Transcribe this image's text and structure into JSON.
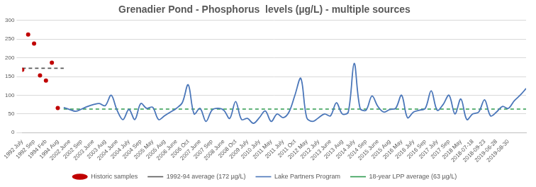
{
  "chart_data": {
    "type": "line",
    "title": "Grenadier Pond - Phosphorus  levels (µg/L) - multiple sources",
    "categories": [
      "1992 July",
      null,
      "1992 Sep",
      null,
      "1994 Feb",
      null,
      "1994 Aug",
      null,
      "2002 June",
      null,
      "2002 Sep",
      null,
      "2003 June",
      null,
      "2003 Aug",
      null,
      "2004 June",
      null,
      "2004 July",
      null,
      "2004 Sep",
      null,
      "2005 May",
      null,
      "2005 Aug",
      null,
      "2006 June",
      null,
      "2006 Oct",
      null,
      "2007 June",
      null,
      "2007 Sep",
      null,
      "2008 June",
      null,
      "2008 Oct",
      null,
      "2009 July",
      null,
      "2010 July",
      null,
      "2011 May",
      null,
      "2011 July",
      null,
      "2011 Oct",
      null,
      "2012 May",
      null,
      "2012 July",
      null,
      "2013 June",
      null,
      "2013 Aug",
      null,
      "2014 July",
      null,
      "2014 Sep",
      null,
      "2015 June",
      null,
      "2015 Aug",
      null,
      "2016 May",
      null,
      "2016 July",
      null,
      "2016 Sep",
      null,
      "2017 July",
      null,
      "2017 Sep",
      null,
      "2018 May",
      null,
      "2018-07-18",
      null,
      "2018-09-23",
      null,
      "2019-06-28",
      null,
      "2019-08-30",
      null,
      null,
      null
    ],
    "series": [
      {
        "name": "Historic samples",
        "type": "scatter",
        "marker": "circle",
        "color": "#c00000",
        "values": [
          168,
          262,
          238,
          153,
          139,
          187,
          66,
          null,
          null,
          null,
          null,
          null,
          null,
          null,
          null,
          null,
          null,
          null,
          null,
          null,
          null,
          null,
          null,
          null,
          null,
          null,
          null,
          null,
          null,
          null,
          null,
          null,
          null,
          null,
          null,
          null,
          null,
          null,
          null,
          null,
          null,
          null,
          null,
          null,
          null,
          null,
          null,
          null,
          null,
          null,
          null,
          null,
          null,
          null,
          null,
          null,
          null,
          null,
          null,
          null,
          null,
          null,
          null,
          null,
          null,
          null,
          null,
          null,
          null,
          null,
          null,
          null,
          null,
          null,
          null,
          null,
          null,
          null,
          null,
          null,
          null,
          null,
          null,
          null,
          null,
          null
        ]
      },
      {
        "name": "1992-94 average (172 µg/L)",
        "type": "line",
        "line_style": "dashed",
        "color": "#595959",
        "values": [
          172,
          172,
          172,
          172,
          172,
          172,
          172,
          172,
          null,
          null,
          null,
          null,
          null,
          null,
          null,
          null,
          null,
          null,
          null,
          null,
          null,
          null,
          null,
          null,
          null,
          null,
          null,
          null,
          null,
          null,
          null,
          null,
          null,
          null,
          null,
          null,
          null,
          null,
          null,
          null,
          null,
          null,
          null,
          null,
          null,
          null,
          null,
          null,
          null,
          null,
          null,
          null,
          null,
          null,
          null,
          null,
          null,
          null,
          null,
          null,
          null,
          null,
          null,
          null,
          null,
          null,
          null,
          null,
          null,
          null,
          null,
          null,
          null,
          null,
          null,
          null,
          null,
          null,
          null,
          null,
          null,
          null,
          null,
          null,
          null,
          null
        ]
      },
      {
        "name": "Lake Partners Program",
        "type": "line",
        "line_style": "solid",
        "color": "#4a76b9",
        "values": [
          null,
          null,
          null,
          null,
          null,
          null,
          null,
          67,
          62,
          57,
          63,
          70,
          75,
          78,
          72,
          100,
          60,
          35,
          62,
          35,
          78,
          65,
          68,
          35,
          45,
          55,
          65,
          80,
          128,
          50,
          65,
          30,
          60,
          65,
          60,
          38,
          83,
          35,
          38,
          25,
          40,
          58,
          30,
          50,
          40,
          55,
          100,
          145,
          40,
          30,
          40,
          50,
          45,
          80,
          50,
          55,
          185,
          65,
          60,
          98,
          70,
          55,
          62,
          65,
          100,
          40,
          55,
          60,
          65,
          112,
          60,
          75,
          100,
          50,
          90,
          35,
          50,
          55,
          88,
          45,
          55,
          70,
          65,
          85,
          100,
          118
        ]
      },
      {
        "name": "18-year LPP average (63 µg/L)",
        "type": "line",
        "line_style": "dashed",
        "color": "#2e9a4e",
        "values": [
          null,
          null,
          null,
          null,
          null,
          null,
          null,
          63,
          63,
          63,
          63,
          63,
          63,
          63,
          63,
          63,
          63,
          63,
          63,
          63,
          63,
          63,
          63,
          63,
          63,
          63,
          63,
          63,
          63,
          63,
          63,
          63,
          63,
          63,
          63,
          63,
          63,
          63,
          63,
          63,
          63,
          63,
          63,
          63,
          63,
          63,
          63,
          63,
          63,
          63,
          63,
          63,
          63,
          63,
          63,
          63,
          63,
          63,
          63,
          63,
          63,
          63,
          63,
          63,
          63,
          63,
          63,
          63,
          63,
          63,
          63,
          63,
          63,
          63,
          63,
          63,
          63,
          63,
          63,
          63,
          63,
          63,
          63,
          63,
          63,
          63
        ]
      }
    ],
    "ylim": [
      0,
      300
    ],
    "yticks": [
      0,
      50,
      100,
      150,
      200,
      250,
      300
    ],
    "grid": true,
    "legend": "bottom"
  }
}
